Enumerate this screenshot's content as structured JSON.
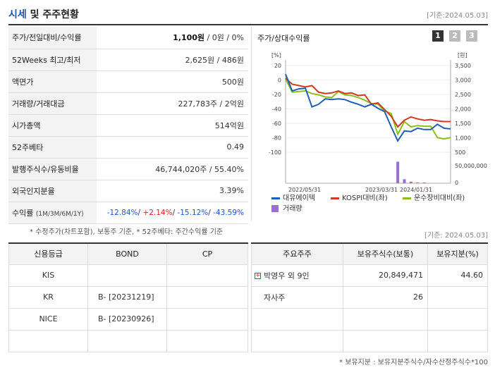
{
  "header": {
    "title_main": "시세",
    "title_rest": "및 주주현황",
    "date": "[기준:2024.05.03]"
  },
  "quote_rows": [
    {
      "key": "주가/전일대비/수익률",
      "value_bold": "1,100원",
      "value_rest": " / 0원 / 0%"
    },
    {
      "key": "52Weeks 최고/최저",
      "value": "2,625원 / 486원"
    },
    {
      "key": "액면가",
      "value": "500원"
    },
    {
      "key": "거래량/거래대금",
      "value": "227,783주 / 2억원"
    },
    {
      "key": "시가총액",
      "value": "514억원"
    },
    {
      "key": "52주베타",
      "value": "0.49"
    },
    {
      "key": "발행주식수/유동비율",
      "value": "46,744,020주 / 55.40%"
    },
    {
      "key": "외국인지분율",
      "value": "3.39%"
    }
  ],
  "returns": {
    "key": "수익률",
    "key_small": "(1M/3M/6M/1Y)",
    "v1": "-12.84%",
    "v2": "+2.14%",
    "v3": "-15.12%",
    "v4": "-43.59%",
    "sep": "/ "
  },
  "chart": {
    "title": "주가/상대수익률",
    "pages": [
      "1",
      "2",
      "3"
    ],
    "left_unit": "[%]",
    "right_unit": "[원]",
    "colors": {
      "price": "#1f5fb8",
      "kospi": "#d03a1e",
      "sector": "#8cbf1a",
      "volume": "#9b6fd1"
    }
  },
  "chart_data": {
    "type": "line",
    "x_ticks": [
      "2022/05/31",
      "2023/03/31",
      "2024/01/31"
    ],
    "left_axis": {
      "ticks": [
        "20",
        "0",
        "-20",
        "-40",
        "-60",
        "-80",
        "-100"
      ],
      "range": [
        -110,
        20
      ]
    },
    "right_axis": {
      "ticks": [
        "3,500",
        "3,000",
        "2,500",
        "2,000",
        "1,500",
        "1,000",
        "500"
      ],
      "range": [
        0,
        3500
      ]
    },
    "volume_axis": {
      "ticks": [
        "50,000,000",
        "0"
      ]
    },
    "series": [
      {
        "name": "대유에이텍",
        "values": [
          7,
          -18,
          -15,
          -14,
          -42,
          -38,
          -30,
          -31,
          -30,
          -31,
          -35,
          -38,
          -42,
          -38,
          -44,
          -49,
          -72,
          -93,
          -78,
          -79,
          -74,
          -76,
          -76,
          -68,
          -74,
          -75
        ]
      },
      {
        "name": "KOSPI대비(좌)",
        "values": [
          1,
          -8,
          -10,
          -12,
          -10,
          -20,
          -22,
          -21,
          -18,
          -22,
          -21,
          -25,
          -24,
          -38,
          -36,
          -46,
          -56,
          -72,
          -62,
          -57,
          -60,
          -62,
          -61,
          -63,
          -64,
          -64
        ]
      },
      {
        "name": "운수장비대비(좌)",
        "values": [
          0,
          -20,
          -19,
          -18,
          -22,
          -24,
          -27,
          -28,
          -19,
          -24,
          -25,
          -28,
          -32,
          -37,
          -38,
          -48,
          -52,
          -83,
          -64,
          -72,
          -70,
          -71,
          -71,
          -88,
          -90,
          -88
        ]
      },
      {
        "name": "거래량",
        "values": [
          0,
          0,
          0,
          0,
          0,
          0,
          0,
          0,
          0,
          0,
          0,
          0,
          0,
          0,
          0,
          0,
          0,
          27,
          5,
          2,
          1,
          1,
          0,
          0,
          0,
          0
        ]
      }
    ]
  },
  "footnote": "* 수정주가(차트포함), 보통주 기준, * 52주베타: 주간수익률 기준",
  "date2": "[기준: 2024.05.03]",
  "rating": {
    "headers": [
      "신용등급",
      "BOND",
      "CP"
    ],
    "rows": [
      {
        "agency": "KIS",
        "bond": "",
        "cp": ""
      },
      {
        "agency": "KR",
        "bond": "B-   [20231219]",
        "cp": ""
      },
      {
        "agency": "NICE",
        "bond": "B-   [20230926]",
        "cp": ""
      },
      {
        "agency": "",
        "bond": "",
        "cp": ""
      }
    ]
  },
  "holders": {
    "headers": [
      "주요주주",
      "보유주식수(보통)",
      "보유지분(%)"
    ],
    "rows": [
      {
        "name": "박영우 외 9인",
        "shares": "20,849,471",
        "pct": "44.60",
        "expand": "+"
      },
      {
        "name": "자사주",
        "shares": "26",
        "pct": ""
      },
      {
        "name": "",
        "shares": "",
        "pct": ""
      },
      {
        "name": "",
        "shares": "",
        "pct": ""
      }
    ]
  },
  "footnote2": "* 보유지분 : 보유지분주식수/자수산정주식수*100"
}
